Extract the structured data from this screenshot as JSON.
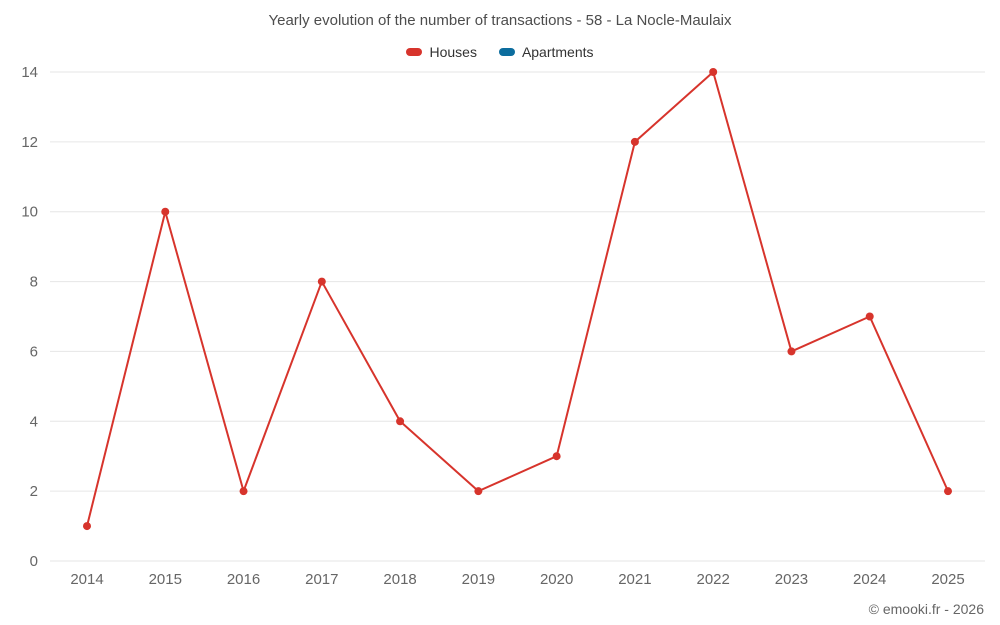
{
  "chart_data": {
    "type": "line",
    "title": "Yearly evolution of the number of transactions - 58 - La Nocle-Maulaix",
    "categories": [
      "2014",
      "2015",
      "2016",
      "2017",
      "2018",
      "2019",
      "2020",
      "2021",
      "2022",
      "2023",
      "2024",
      "2025"
    ],
    "series": [
      {
        "name": "Houses",
        "color": "#d7342c",
        "values": [
          1,
          10,
          2,
          8,
          4,
          2,
          3,
          12,
          14,
          6,
          7,
          2
        ]
      },
      {
        "name": "Apartments",
        "color": "#0c6d9e",
        "values": []
      }
    ],
    "ylim": [
      0,
      14
    ],
    "yticks": [
      0,
      2,
      4,
      6,
      8,
      10,
      12,
      14
    ],
    "grid": "horizontal",
    "gridline_color": "#e6e6e6",
    "legend_position": "top"
  },
  "footer": {
    "copyright": "© emooki.fr - 2026"
  }
}
